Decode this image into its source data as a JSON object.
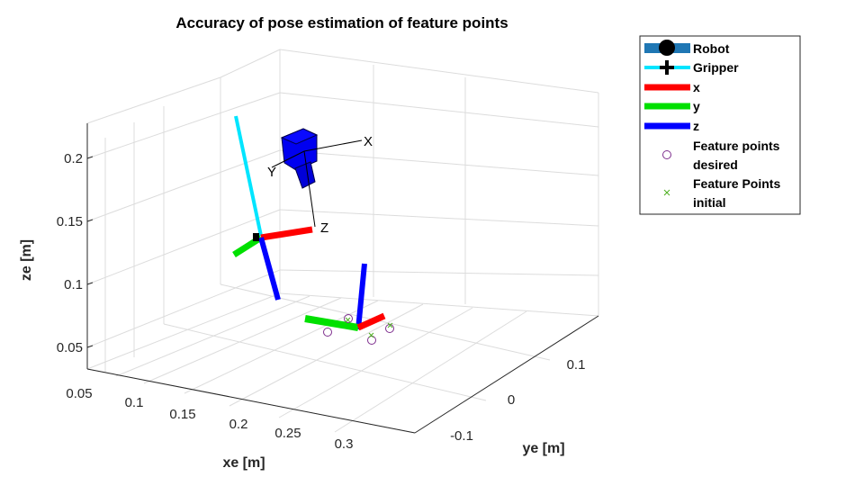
{
  "chart_data": {
    "type": "scatter",
    "title": "Accuracy of pose estimation of feature points",
    "xlabel": "xe [m]",
    "ylabel": "ye [m]",
    "zlabel": "ze [m]",
    "xlim": [
      0.05,
      0.35
    ],
    "ylim": [
      -0.15,
      0.2
    ],
    "zlim": [
      0.03,
      0.23
    ],
    "x_ticks": [
      "0.05",
      "0.1",
      "0.15",
      "0.2",
      "0.25",
      "0.3"
    ],
    "y_ticks": [
      "-0.1",
      "0",
      "0.1"
    ],
    "z_ticks": [
      "0.05",
      "0.1",
      "0.15",
      "0.2"
    ],
    "grid": true,
    "legend_position": "outside-right",
    "legend": [
      {
        "label": "Robot",
        "marker": "robot",
        "color": "#1f77b4"
      },
      {
        "label": "Gripper",
        "marker": "plus-line",
        "color": "#00e5ff"
      },
      {
        "label": "x",
        "marker": "line",
        "color": "#ff0000"
      },
      {
        "label": "y",
        "marker": "line",
        "color": "#00e000"
      },
      {
        "label": "z",
        "marker": "line",
        "color": "#0000ff"
      },
      {
        "label": "Feature points desired",
        "marker": "circle",
        "color": "#7e2f8e"
      },
      {
        "label": "Feature Points initial",
        "marker": "x",
        "color": "#4caf1f"
      }
    ],
    "camera_frame_labels": [
      "X",
      "Y",
      "Z"
    ],
    "feature_points_desired": [
      {
        "x": 0.245,
        "y": -0.02,
        "z": 0.06
      },
      {
        "x": 0.255,
        "y": 0.0,
        "z": 0.066
      },
      {
        "x": 0.265,
        "y": 0.05,
        "z": 0.058
      },
      {
        "x": 0.275,
        "y": 0.07,
        "z": 0.064
      }
    ],
    "feature_points_initial": [
      {
        "x": 0.25,
        "y": 0.0,
        "z": 0.064
      },
      {
        "x": 0.262,
        "y": 0.05,
        "z": 0.061
      },
      {
        "x": 0.273,
        "y": 0.07,
        "z": 0.066
      }
    ]
  }
}
